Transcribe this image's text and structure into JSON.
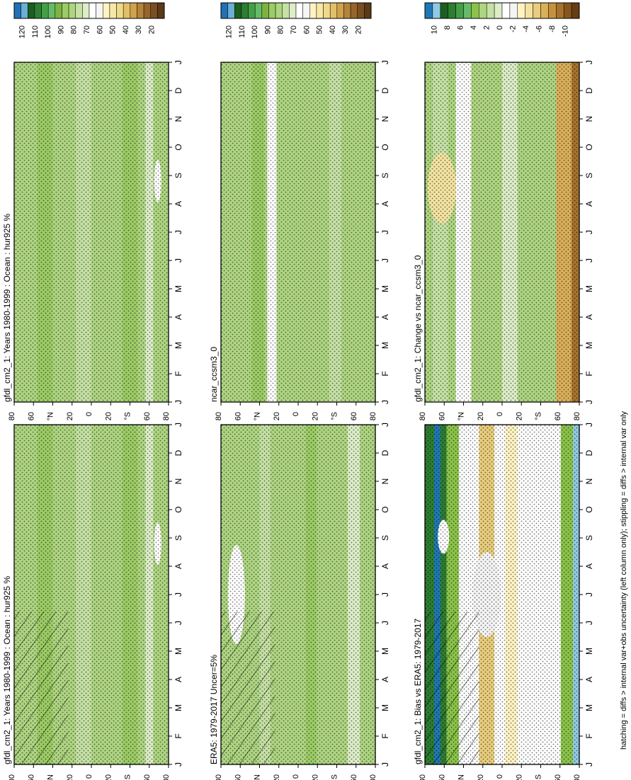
{
  "figure": {
    "footnote": "hatching = diffs > internal var+obs uncertainty (left column only); stippling = diffs > internal var only"
  },
  "months": [
    "J",
    "F",
    "M",
    "A",
    "M",
    "J",
    "J",
    "A",
    "S",
    "O",
    "N",
    "D",
    "J"
  ],
  "lat_ticks": [
    "80",
    "60",
    "°N",
    "20",
    "0",
    "20",
    "°S",
    "60",
    "80"
  ],
  "colors": {
    "abs_scale": [
      "#2171b5",
      "#6baed6",
      "#1b5e20",
      "#2e7d32",
      "#43a047",
      "#66bb6a",
      "#7cb342",
      "#9ccc65",
      "#aed581",
      "#c5e1a5",
      "#dcedc8",
      "#ffffff",
      "#f5f5f5",
      "#fff3c4",
      "#f6e8a6",
      "#efd98a",
      "#e2c06a",
      "#d0a24c",
      "#b5833a",
      "#96652c",
      "#7a4e21",
      "#5a3a17"
    ],
    "diff_scale": [
      "#1f78b4",
      "#8ecae6",
      "#1b5e20",
      "#2e7d32",
      "#43a047",
      "#66bb6a",
      "#8bc34a",
      "#aed581",
      "#c5e1a5",
      "#dcedc8",
      "#ffffff",
      "#f4f4f4",
      "#fff3c4",
      "#f3e3a0",
      "#e8cd7c",
      "#d9b05a",
      "#c6913f",
      "#a8722d",
      "#87561f",
      "#663d14"
    ]
  },
  "panels": [
    {
      "id": "model-abs",
      "title": "gfdl_cm2_1: Years 1980-1999 : Ocean : hur925 %",
      "scale": "abs",
      "cbar_ticks": [
        "120",
        "110",
        "100",
        "90",
        "80",
        "70",
        "60",
        "50",
        "40",
        "30",
        "20"
      ],
      "chart_data": {
        "type": "heatmap",
        "x": [
          "J",
          "F",
          "M",
          "A",
          "M",
          "J",
          "J",
          "A",
          "S",
          "O",
          "N",
          "D",
          "J"
        ],
        "y": [
          "80S",
          "60S",
          "40S",
          "20S",
          "0",
          "20N",
          "40N",
          "60N",
          "80N"
        ],
        "colorbar": "hur925 %",
        "range": [
          20,
          120
        ]
      }
    },
    {
      "id": "model-abs-2",
      "title": "gfdl_cm2_1: Years 1980-1999 : Ocean : hur925 %",
      "scale": "abs",
      "cbar_ticks": [
        "120",
        "110",
        "100",
        "90",
        "80",
        "70",
        "60",
        "50",
        "40",
        "30",
        "20"
      ],
      "chart_data": {
        "type": "heatmap",
        "x": [
          "J",
          "F",
          "M",
          "A",
          "M",
          "J",
          "J",
          "A",
          "S",
          "O",
          "N",
          "D",
          "J"
        ],
        "y": [
          "80S",
          "60S",
          "40S",
          "20S",
          "0",
          "20N",
          "40N",
          "60N",
          "80N"
        ],
        "colorbar": "hur925 %",
        "range": [
          20,
          120
        ]
      }
    },
    {
      "id": "era5",
      "title": "ERA5: 1979-2017 Uncer=5%",
      "scale": "abs",
      "cbar_ticks": [
        "120",
        "110",
        "100",
        "90",
        "80",
        "70",
        "60",
        "50",
        "40",
        "30",
        "20"
      ],
      "chart_data": {
        "type": "heatmap",
        "x": [
          "J",
          "F",
          "M",
          "A",
          "M",
          "J",
          "J",
          "A",
          "S",
          "O",
          "N",
          "D",
          "J"
        ],
        "y": [
          "80S",
          "60S",
          "40S",
          "20S",
          "0",
          "20N",
          "40N",
          "60N",
          "80N"
        ],
        "range": [
          20,
          120
        ]
      }
    },
    {
      "id": "ncar",
      "title": "ncar_ccsm3_0",
      "scale": "abs",
      "cbar_ticks": [
        "120",
        "110",
        "100",
        "90",
        "80",
        "70",
        "60",
        "50",
        "40",
        "30",
        "20"
      ],
      "chart_data": {
        "type": "heatmap",
        "x": [
          "J",
          "F",
          "M",
          "A",
          "M",
          "J",
          "J",
          "A",
          "S",
          "O",
          "N",
          "D",
          "J"
        ],
        "y": [
          "80S",
          "60S",
          "40S",
          "20S",
          "0",
          "20N",
          "40N",
          "60N",
          "80N"
        ],
        "range": [
          20,
          120
        ]
      }
    },
    {
      "id": "bias",
      "title": "gfdl_cm2_1: Bias vs ERA5: 1979-2017",
      "scale": "diff",
      "cbar_ticks": [
        "10",
        "8",
        "6",
        "4",
        "2",
        "0",
        "-2",
        "-4",
        "-6",
        "-8",
        "-10"
      ],
      "chart_data": {
        "type": "heatmap",
        "x": [
          "J",
          "F",
          "M",
          "A",
          "M",
          "J",
          "J",
          "A",
          "S",
          "O",
          "N",
          "D",
          "J"
        ],
        "y": [
          "80S",
          "60S",
          "40S",
          "20S",
          "0",
          "20N",
          "40N",
          "60N",
          "80N"
        ],
        "range": [
          -10,
          10
        ]
      }
    },
    {
      "id": "change",
      "title": "gfdl_cm2_1: Change vs ncar_ccsm3_0",
      "scale": "diff",
      "cbar_ticks": [
        "10",
        "8",
        "6",
        "4",
        "2",
        "0",
        "-2",
        "-4",
        "-6",
        "-8",
        "-10"
      ],
      "chart_data": {
        "type": "heatmap",
        "x": [
          "J",
          "F",
          "M",
          "A",
          "M",
          "J",
          "J",
          "A",
          "S",
          "O",
          "N",
          "D",
          "J"
        ],
        "y": [
          "80S",
          "60S",
          "40S",
          "20S",
          "0",
          "20N",
          "40N",
          "60N",
          "80N"
        ],
        "range": [
          -10,
          10
        ]
      }
    }
  ]
}
